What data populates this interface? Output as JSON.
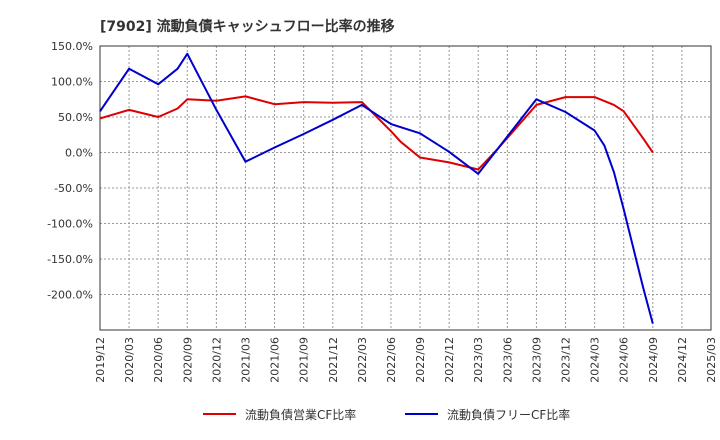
{
  "chart_data": {
    "type": "line",
    "title": "[7902]  流動負債キャッシュフロー比率の推移",
    "xlabel": "",
    "ylabel": "",
    "ylim": [
      -250,
      150
    ],
    "grid": true,
    "legend_position": "bottom",
    "y_ticks": [
      150,
      100,
      50,
      0,
      -50,
      -100,
      -150,
      -200
    ],
    "y_tick_labels": [
      "150.0%",
      "100.0%",
      "50.0%",
      "0.0%",
      "-50.0%",
      "-100.0%",
      "-150.0%",
      "-200.0%"
    ],
    "x_tick_labels": [
      "2019/12",
      "2020/03",
      "2020/06",
      "2020/09",
      "2020/12",
      "2021/03",
      "2021/06",
      "2021/09",
      "2021/12",
      "2022/03",
      "2022/06",
      "2022/09",
      "2022/12",
      "2023/03",
      "2023/06",
      "2023/09",
      "2023/12",
      "2024/03",
      "2024/06",
      "2024/09",
      "2024/12",
      "2025/03"
    ],
    "series": [
      {
        "name": "流動負債営業CF比率",
        "color": "#dd0000",
        "x": [
          "2019/12",
          "2020/03",
          "2020/06",
          "2020/08",
          "2020/09",
          "2020/12",
          "2021/03",
          "2021/06",
          "2021/09",
          "2021/12",
          "2022/03",
          "2022/06",
          "2022/07",
          "2022/09",
          "2022/12",
          "2023/03",
          "2023/05",
          "2023/09",
          "2023/12",
          "2024/03",
          "2024/05",
          "2024/06",
          "2024/08",
          "2024/09"
        ],
        "values": [
          48,
          60,
          50,
          62,
          75,
          73,
          79,
          68,
          71,
          70,
          71,
          30,
          15,
          -7,
          -14,
          -24,
          5,
          67,
          78,
          78,
          67,
          58,
          20,
          0
        ]
      },
      {
        "name": "流動負債フリーCF比率",
        "color": "#0000cc",
        "x": [
          "2019/12",
          "2020/03",
          "2020/06",
          "2020/08",
          "2020/09",
          "2020/12",
          "2021/03",
          "2021/06",
          "2021/09",
          "2021/12",
          "2022/03",
          "2022/06",
          "2022/09",
          "2022/12",
          "2023/03",
          "2023/05",
          "2023/09",
          "2023/12",
          "2024/03",
          "2024/04",
          "2024/05",
          "2024/06",
          "2024/08",
          "2024/09"
        ],
        "values": [
          58,
          118,
          96,
          118,
          139,
          60,
          -13,
          7,
          26,
          46,
          67,
          40,
          27,
          1,
          -30,
          5,
          75,
          57,
          31,
          10,
          -28,
          -80,
          -190,
          -241
        ]
      }
    ]
  }
}
